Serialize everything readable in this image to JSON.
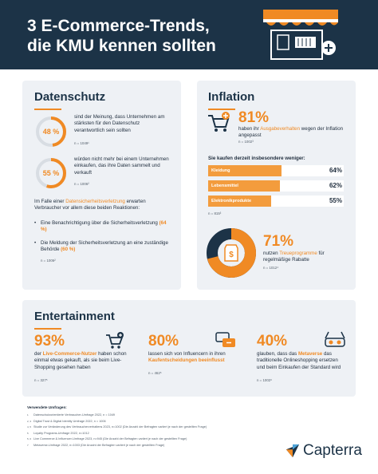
{
  "header": {
    "title_line1": "3 E-Commerce-Trends,",
    "title_line2": "die KMU kennen sollten"
  },
  "datenschutz": {
    "title": "Datenschutz",
    "stat1": {
      "value": "48 %",
      "percent": 48,
      "text": "sind der Meinung, dass Unternehmen am stärksten für den Datenschutz verantwortlich sein sollten",
      "note": "n = 1049¹"
    },
    "stat2": {
      "value": "55 %",
      "percent": 55,
      "text": "würden nicht mehr bei einem Unternehmen einkaufen, das ihre Daten sammelt und verkauft",
      "note": "n = 1006²"
    },
    "intro_pre": "Im Falle einer ",
    "intro_highlight": "Datensicherheitsverletzung",
    "intro_post": " erwarten Verbraucher vor allem diese beiden Reaktionen:",
    "bullet1_pre": "Eine Benachrichtigung über die Sicherheitsverletzung ",
    "bullet1_val": "(64 %)",
    "bullet2_pre": "Die Meldung der Sicherheitsverletzung an eine zuständige Behörde ",
    "bullet2_val": "(60 %)",
    "note3": "n = 1006²"
  },
  "inflation": {
    "title": "Inflation",
    "big": "81%",
    "text_pre": "haben ihr ",
    "text_highlight": "Ausgabeverhalten",
    "text_post": " wegen der Inflation angepasst",
    "note": "n = 1002³",
    "bars_title": "Sie kaufen derzeit insbesondere weniger:",
    "bars": [
      {
        "label": "Kleidung",
        "value": "64%",
        "percent": 64
      },
      {
        "label": "Lebensmittel",
        "value": "62%",
        "percent": 62
      },
      {
        "label": "Elektronikprodukte",
        "value": "55%",
        "percent": 55
      }
    ],
    "bars_note": "n = 815³",
    "loyalty_big": "71%",
    "loyalty_pre": "nutzen ",
    "loyalty_highlight": "Treueprogramme",
    "loyalty_post": " für regelmäßige Rabatte",
    "loyalty_percent": 71,
    "loyalty_note": "n = 1012⁴"
  },
  "entertainment": {
    "title": "Entertainment",
    "items": [
      {
        "big": "93%",
        "pre": "der ",
        "highlight": "Live-Commerce-Nutzer",
        "post": " haben schon einmal etwas gekauft, als sie beim Live-Shopping gesehen haben",
        "note": "n = 327⁵"
      },
      {
        "big": "80%",
        "pre": "lassen sich von Influencern in ihren ",
        "highlight": "Kaufentscheidungen beeinflusst",
        "post": "",
        "note": "n = 462⁵"
      },
      {
        "big": "40%",
        "pre": "glauben, dass das ",
        "highlight": "Metaverse",
        "post": " das traditionelle Onlineshopping ersetzen und beim Einkaufen der Standard wird",
        "note": "n = 1002⁶"
      }
    ]
  },
  "footer": {
    "title": "Verwendete Umfragen:",
    "sources": [
      {
        "num": "1",
        "text": "Datenschutzorientierte Verbraucher-Umfrage 2022, n = 1049"
      },
      {
        "num": "2, 3",
        "text": "Digital Trust & Digital Identity Umfrage 2022, n = 1006"
      },
      {
        "num": "4, 5",
        "text": "Studie zur Veränderung des Verbraucherverhaltens 2023, n=1002 (Die Anzahl der Befragten variiert je nach der gestellten Frage)"
      },
      {
        "num": "5",
        "text": "Loyalty Programs-Umfrage 2022, n=1012"
      },
      {
        "num": "5, 6",
        "text": "Live Commerce & Influencer-Umfrage 2023, n=945 (Die Anzahl der Befragten variiert je nach der gestellten Frage)"
      },
      {
        "num": "7",
        "text": "Metaverse-Umfrage 2022, n=1003 (Die Anzahl der Befragten variiert je nach der gestellten Frage)"
      }
    ],
    "logo": "Capterra"
  },
  "colors": {
    "accent": "#f08a24",
    "navy": "#1c3347",
    "card": "#eef1f5"
  }
}
